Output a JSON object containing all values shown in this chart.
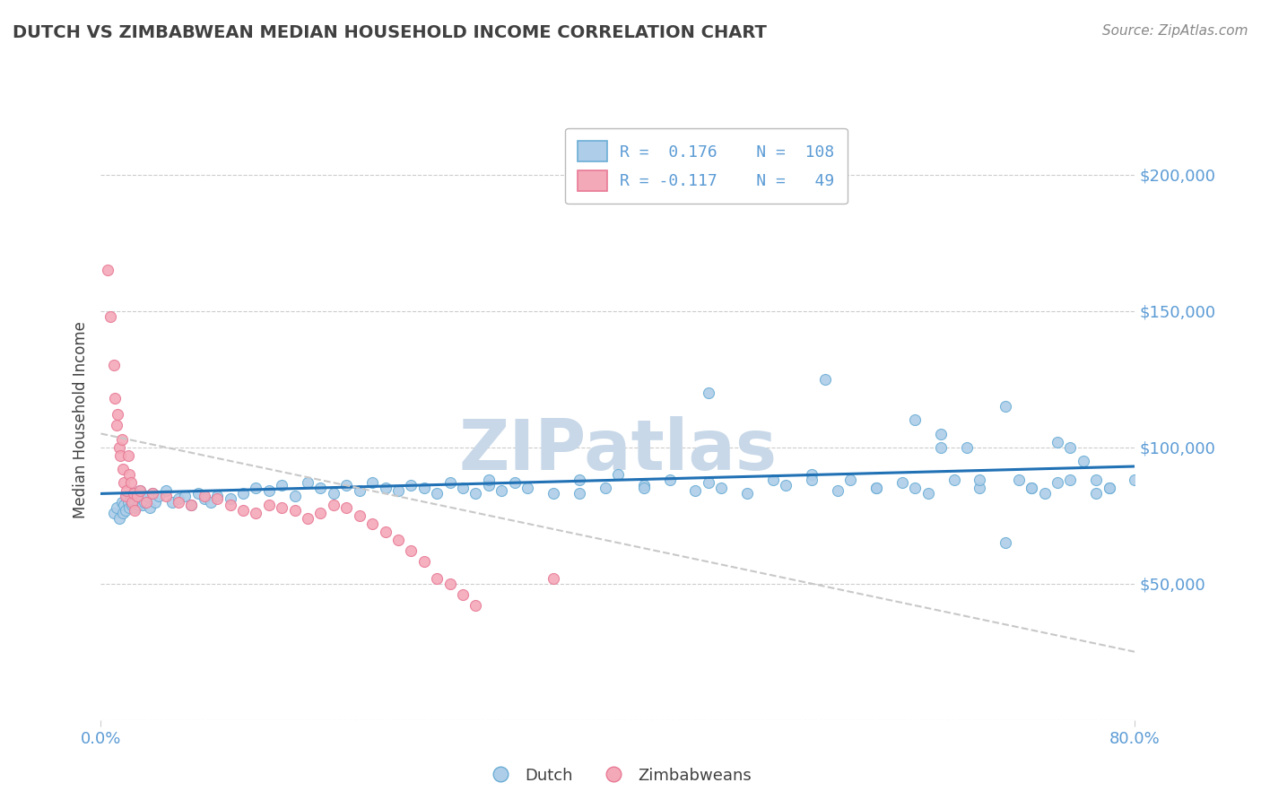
{
  "title": "DUTCH VS ZIMBABWEAN MEDIAN HOUSEHOLD INCOME CORRELATION CHART",
  "source": "Source: ZipAtlas.com",
  "ylabel": "Median Household Income",
  "x_min": 0.0,
  "x_max": 80.0,
  "y_min": 0,
  "y_max": 220000,
  "dutch_R": 0.176,
  "dutch_N": 108,
  "zimbabwean_R": -0.117,
  "zimbabwean_N": 49,
  "dutch_color": "#6baed6",
  "dutch_color_light": "#aecde8",
  "zimbabwean_color": "#f4a9b8",
  "zimbabwean_color_dark": "#e87a96",
  "trend_dutch_color": "#2171b5",
  "trend_zim_color": "#c8c8c8",
  "watermark_color": "#c8d8e8",
  "background_color": "#ffffff",
  "title_color": "#404040",
  "source_color": "#888888",
  "axis_tick_color": "#5b9bd5",
  "grid_color": "#cccccc",
  "dutch_points_x": [
    1.0,
    1.2,
    1.4,
    1.6,
    1.7,
    1.8,
    1.9,
    2.0,
    2.1,
    2.2,
    2.3,
    2.4,
    2.5,
    2.6,
    2.7,
    2.8,
    2.9,
    3.0,
    3.1,
    3.2,
    3.4,
    3.6,
    3.8,
    4.0,
    4.2,
    4.5,
    5.0,
    5.5,
    6.0,
    6.5,
    7.0,
    7.5,
    8.0,
    8.5,
    9.0,
    10.0,
    11.0,
    12.0,
    13.0,
    14.0,
    15.0,
    16.0,
    17.0,
    18.0,
    19.0,
    20.0,
    21.0,
    22.0,
    23.0,
    24.0,
    25.0,
    26.0,
    27.0,
    28.0,
    29.0,
    30.0,
    31.0,
    32.0,
    33.0,
    35.0,
    37.0,
    39.0,
    40.0,
    42.0,
    44.0,
    46.0,
    47.0,
    48.0,
    50.0,
    52.0,
    53.0,
    55.0,
    57.0,
    58.0,
    60.0,
    62.0,
    63.0,
    64.0,
    65.0,
    66.0,
    68.0,
    70.0,
    71.0,
    72.0,
    73.0,
    74.0,
    75.0,
    76.0,
    77.0,
    78.0,
    63.0,
    65.0,
    67.0,
    68.0,
    70.0,
    72.0,
    74.0,
    75.0,
    77.0,
    78.0,
    80.0,
    56.0,
    47.0,
    30.0,
    42.0,
    37.0,
    55.0,
    60.0
  ],
  "dutch_points_y": [
    76000,
    78000,
    74000,
    80000,
    76000,
    79000,
    77000,
    82000,
    80000,
    78000,
    81000,
    79000,
    83000,
    80000,
    78000,
    82000,
    79000,
    84000,
    81000,
    79000,
    80000,
    82000,
    78000,
    83000,
    80000,
    82000,
    84000,
    80000,
    81000,
    82000,
    79000,
    83000,
    81000,
    80000,
    82000,
    81000,
    83000,
    85000,
    84000,
    86000,
    82000,
    87000,
    85000,
    83000,
    86000,
    84000,
    87000,
    85000,
    84000,
    86000,
    85000,
    83000,
    87000,
    85000,
    83000,
    86000,
    84000,
    87000,
    85000,
    83000,
    88000,
    85000,
    90000,
    86000,
    88000,
    84000,
    87000,
    85000,
    83000,
    88000,
    86000,
    90000,
    84000,
    88000,
    85000,
    87000,
    85000,
    83000,
    100000,
    88000,
    85000,
    65000,
    88000,
    85000,
    83000,
    87000,
    100000,
    95000,
    88000,
    85000,
    110000,
    105000,
    100000,
    88000,
    115000,
    85000,
    102000,
    88000,
    83000,
    85000,
    88000,
    125000,
    120000,
    88000,
    85000,
    83000,
    88000,
    85000
  ],
  "zim_points_x": [
    0.5,
    0.7,
    1.0,
    1.1,
    1.2,
    1.3,
    1.4,
    1.5,
    1.6,
    1.7,
    1.8,
    1.9,
    2.0,
    2.1,
    2.2,
    2.3,
    2.4,
    2.5,
    2.6,
    2.8,
    3.0,
    3.5,
    4.0,
    5.0,
    6.0,
    7.0,
    8.0,
    9.0,
    10.0,
    11.0,
    12.0,
    13.0,
    14.0,
    15.0,
    16.0,
    17.0,
    18.0,
    19.0,
    20.0,
    21.0,
    22.0,
    23.0,
    24.0,
    25.0,
    26.0,
    27.0,
    28.0,
    29.0,
    35.0
  ],
  "zim_points_y": [
    165000,
    148000,
    130000,
    118000,
    108000,
    112000,
    100000,
    97000,
    103000,
    92000,
    87000,
    82000,
    84000,
    97000,
    90000,
    87000,
    80000,
    83000,
    77000,
    82000,
    84000,
    80000,
    83000,
    82000,
    80000,
    79000,
    82000,
    81000,
    79000,
    77000,
    76000,
    79000,
    78000,
    77000,
    74000,
    76000,
    79000,
    78000,
    75000,
    72000,
    69000,
    66000,
    62000,
    58000,
    52000,
    50000,
    46000,
    42000,
    52000
  ]
}
